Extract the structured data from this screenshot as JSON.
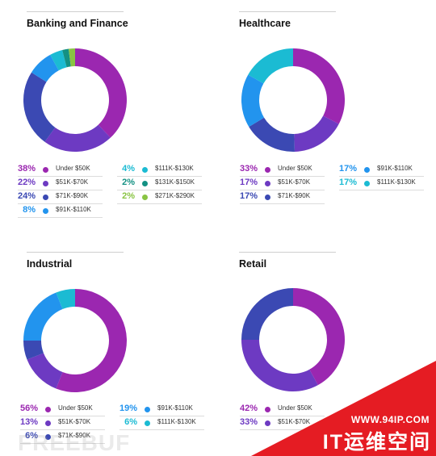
{
  "chart_data": [
    {
      "type": "pie",
      "title": "Banking and Finance",
      "categories": [
        "Under $50K",
        "$51K-$70K",
        "$71K-$90K",
        "$91K-$110K",
        "$111K-$130K",
        "$131K-$150K",
        "$271K-$290K"
      ],
      "values": [
        38,
        22,
        24,
        8,
        4,
        2,
        2
      ],
      "value_labels": [
        "38%",
        "22%",
        "24%",
        "8%",
        "4%",
        "2%",
        "2%"
      ],
      "colors": [
        "#9b27b0",
        "#6d3ac2",
        "#3b49b3",
        "#2294ee",
        "#1bbbd3",
        "#149183",
        "#89c443"
      ]
    },
    {
      "type": "pie",
      "title": "Healthcare",
      "categories": [
        "Under $50K",
        "$51K-$70K",
        "$71K-$90K",
        "$91K-$110K",
        "$111K-$130K"
      ],
      "values": [
        33,
        17,
        17,
        17,
        17
      ],
      "value_labels": [
        "33%",
        "17%",
        "17%",
        "17%",
        "17%"
      ],
      "colors": [
        "#9b27b0",
        "#6d3ac2",
        "#3b49b3",
        "#2294ee",
        "#1bbbd3"
      ]
    },
    {
      "type": "pie",
      "title": "Industrial",
      "categories": [
        "Under $50K",
        "$51K-$70K",
        "$71K-$90K",
        "$91K-$110K",
        "$111K-$130K"
      ],
      "values": [
        56,
        13,
        6,
        19,
        6
      ],
      "value_labels": [
        "56%",
        "13%",
        "6%",
        "19%",
        "6%"
      ],
      "colors": [
        "#9b27b0",
        "#6d3ac2",
        "#3b49b3",
        "#2294ee",
        "#1bbbd3"
      ]
    },
    {
      "type": "pie",
      "title": "Retail",
      "categories": [
        "Under $50K",
        "$51K-$70K"
      ],
      "values": [
        42,
        33
      ],
      "value_labels": [
        "42%",
        "33%"
      ],
      "colors": [
        "#9b27b0",
        "#6d3ac2"
      ],
      "arc_values": [
        42,
        33,
        25
      ],
      "arc_colors": [
        "#9b27b0",
        "#6d3ac2",
        "#3b49b3"
      ],
      "arc_note": "remaining segment hidden behind watermark"
    }
  ],
  "watermarks": {
    "freebuf": "FREEBUF",
    "site": "WWW.94IP.COM",
    "brand": "IT运维空间",
    "banner_color": "#e51c23"
  }
}
